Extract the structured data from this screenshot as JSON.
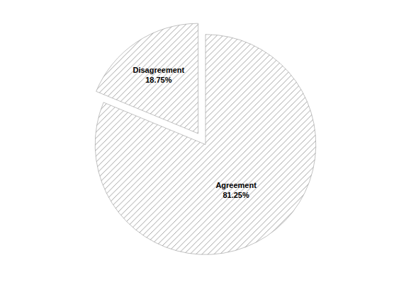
{
  "chart_data": {
    "type": "pie",
    "categories": [
      "Agreement",
      "Disagreement"
    ],
    "values": [
      81.25,
      18.75
    ],
    "value_labels": [
      "Agreement\n81.25%",
      "Disagreement\n18.75%"
    ],
    "colors": [
      "#d4d4d4",
      "#b8b8b8"
    ],
    "data_labels": true
  }
}
